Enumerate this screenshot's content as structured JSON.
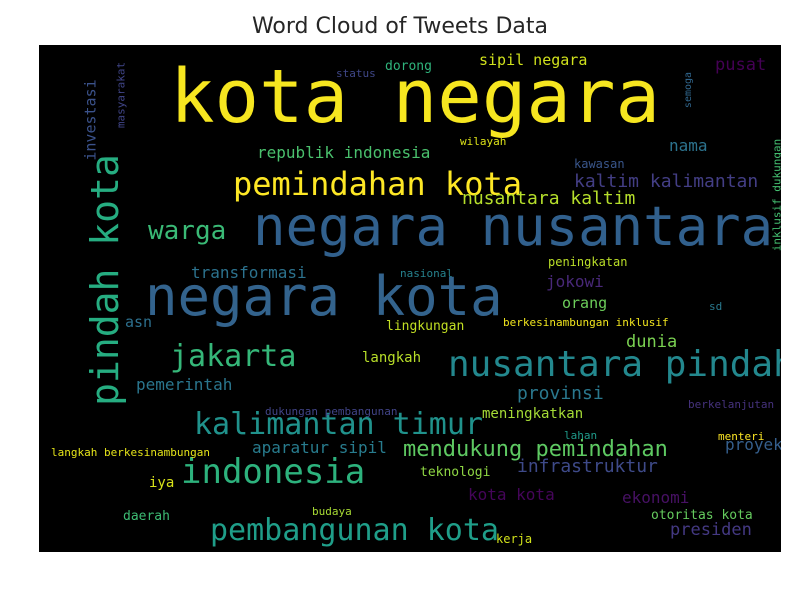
{
  "chart_data": {
    "type": "wordcloud",
    "title": "Word Cloud of Tweets Data",
    "colormap": "viridis",
    "background": "#000000",
    "words": [
      {
        "text": "kota negara",
        "weight": 1.0,
        "color": "#f6e620"
      },
      {
        "text": "negara nusantara",
        "weight": 0.72,
        "color": "#31608d"
      },
      {
        "text": "negara kota",
        "weight": 0.72,
        "color": "#33638d"
      },
      {
        "text": "pindah kota",
        "weight": 0.5,
        "color": "#26ad81"
      },
      {
        "text": "nusantara pindah",
        "weight": 0.46,
        "color": "#23888e"
      },
      {
        "text": "pemindahan kota",
        "weight": 0.42,
        "color": "#fde725"
      },
      {
        "text": "indonesia",
        "weight": 0.44,
        "color": "#2db27d"
      },
      {
        "text": "kalimantan timur",
        "weight": 0.4,
        "color": "#20928c"
      },
      {
        "text": "jakarta",
        "weight": 0.4,
        "color": "#35b779"
      },
      {
        "text": "pembangunan kota",
        "weight": 0.4,
        "color": "#1f9e89"
      },
      {
        "text": "warga",
        "weight": 0.34,
        "color": "#3aba76"
      },
      {
        "text": "mendukung pemindahan",
        "weight": 0.28,
        "color": "#5ec962"
      },
      {
        "text": "nusantara kaltim",
        "weight": 0.24,
        "color": "#b5de2b"
      },
      {
        "text": "kaltim kalimantan",
        "weight": 0.24,
        "color": "#433e85"
      },
      {
        "text": "republik indonesia",
        "weight": 0.22,
        "color": "#4ac16d"
      },
      {
        "text": "transformasi",
        "weight": 0.22,
        "color": "#2c728e"
      },
      {
        "text": "provinsi",
        "weight": 0.24,
        "color": "#2a788e"
      },
      {
        "text": "infrastruktur",
        "weight": 0.24,
        "color": "#3e4a89"
      },
      {
        "text": "dunia",
        "weight": 0.22,
        "color": "#7ad151"
      },
      {
        "text": "pemerintah",
        "weight": 0.22,
        "color": "#2a768e"
      },
      {
        "text": "aparatur sipil",
        "weight": 0.2,
        "color": "#287c8e"
      },
      {
        "text": "sipil negara",
        "weight": 0.2,
        "color": "#d0e11c"
      },
      {
        "text": "pusat",
        "weight": 0.22,
        "color": "#440154"
      },
      {
        "text": "investasi",
        "weight": 0.2,
        "color": "#3b528b"
      },
      {
        "text": "nama",
        "weight": 0.2,
        "color": "#2c738e"
      },
      {
        "text": "jokowi",
        "weight": 0.2,
        "color": "#482878"
      },
      {
        "text": "orang",
        "weight": 0.2,
        "color": "#6ccd5a"
      },
      {
        "text": "asn",
        "weight": 0.18,
        "color": "#2d708e"
      },
      {
        "text": "presiden",
        "weight": 0.2,
        "color": "#443983"
      },
      {
        "text": "ekonomi",
        "weight": 0.2,
        "color": "#471164"
      },
      {
        "text": "kota kota",
        "weight": 0.2,
        "color": "#450559"
      },
      {
        "text": "proyek",
        "weight": 0.2,
        "color": "#355f8d"
      },
      {
        "text": "meningkatkan",
        "weight": 0.18,
        "color": "#a5db36"
      },
      {
        "text": "langkah",
        "weight": 0.16,
        "color": "#b8de29"
      },
      {
        "text": "iya",
        "weight": 0.18,
        "color": "#d8e219"
      },
      {
        "text": "daerah",
        "weight": 0.16,
        "color": "#3dbc74"
      },
      {
        "text": "teknologi",
        "weight": 0.16,
        "color": "#8fd744"
      },
      {
        "text": "lingkungan",
        "weight": 0.16,
        "color": "#c2df23"
      },
      {
        "text": "peningkatan",
        "weight": 0.14,
        "color": "#bade28"
      },
      {
        "text": "kawasan",
        "weight": 0.14,
        "color": "#39568c"
      },
      {
        "text": "wilayah",
        "weight": 0.12,
        "color": "#dde318"
      },
      {
        "text": "dorong",
        "weight": 0.14,
        "color": "#2fb47c"
      },
      {
        "text": "status",
        "weight": 0.12,
        "color": "#3f4788"
      },
      {
        "text": "masyarakat",
        "weight": 0.13,
        "color": "#404588"
      },
      {
        "text": "nasional",
        "weight": 0.12,
        "color": "#26828e"
      },
      {
        "text": "berkesinambungan inklusif",
        "weight": 0.12,
        "color": "#f1e51d"
      },
      {
        "text": "dukungan pembangunan",
        "weight": 0.12,
        "color": "#414487"
      },
      {
        "text": "langkah berkesinambungan",
        "weight": 0.12,
        "color": "#e5e419"
      },
      {
        "text": "lahan",
        "weight": 0.12,
        "color": "#1f9a8a"
      },
      {
        "text": "menteri",
        "weight": 0.12,
        "color": "#fde725"
      },
      {
        "text": "berkelanjutan",
        "weight": 0.12,
        "color": "#46327e"
      },
      {
        "text": "sd",
        "weight": 0.12,
        "color": "#29798e"
      },
      {
        "text": "budaya",
        "weight": 0.12,
        "color": "#a8db34"
      },
      {
        "text": "kerja",
        "weight": 0.12,
        "color": "#d2e21b"
      },
      {
        "text": "otoritas kota",
        "weight": 0.14,
        "color": "#65cb5e"
      },
      {
        "text": "semoga",
        "weight": 0.1,
        "color": "#31678e"
      },
      {
        "text": "inklusif dukungan",
        "weight": 0.12,
        "color": "#44bf70"
      }
    ]
  }
}
